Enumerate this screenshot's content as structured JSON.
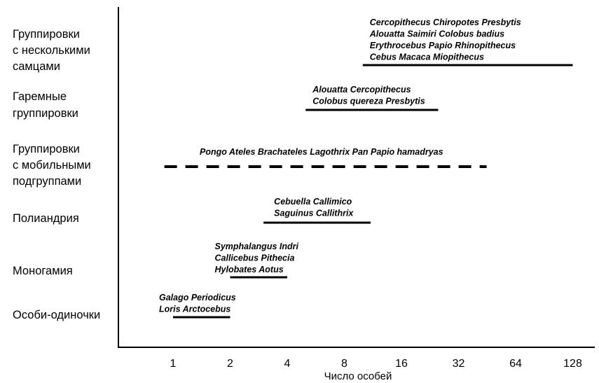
{
  "chart_data": {
    "type": "range",
    "xlabel": "Число особей",
    "x_scale": "log2",
    "x_ticks": [
      "1",
      "2",
      "4",
      "8",
      "16",
      "32",
      "64",
      "128"
    ],
    "xlim": [
      0.6,
      132
    ],
    "grid": false,
    "series": [
      {
        "category": [
          "Группировки",
          "с несколькими",
          "самцами"
        ],
        "species": [
          "Cercopithecus Chiropotes Presbytis",
          "Alouatta Saimiri Colobus badius",
          "Erythrocebus Papio Rhinopithecus",
          "Cebus Macaca Miopithecus"
        ],
        "range": [
          10,
          128
        ],
        "style": "solid"
      },
      {
        "category": [
          "Гаремные",
          "группировки"
        ],
        "species": [
          "Alouatta Cercopithecus",
          "Colobus quereza Presbytis"
        ],
        "range": [
          5,
          25
        ],
        "style": "solid"
      },
      {
        "category": [
          "Группировки",
          "с мобильными",
          "подгруппами"
        ],
        "species": [
          "Pongo Ateles Brachateles Lagothrix Pan Papio hamadryas"
        ],
        "range": [
          0.9,
          45
        ],
        "style": "dashed"
      },
      {
        "category": [
          "Полиандрия"
        ],
        "species": [
          "Cebuella Callimico",
          "Saguinus Callithrix"
        ],
        "range": [
          3,
          11
        ],
        "style": "solid"
      },
      {
        "category": [
          "Моногамия"
        ],
        "species": [
          "Symphalangus Indri",
          "Callicebus Pithecia",
          "Hylobates Aotus"
        ],
        "range": [
          2,
          4
        ],
        "style": "solid"
      },
      {
        "category": [
          "Особи-одиночки"
        ],
        "species": [
          "Galago Periodicus",
          "Loris Arctocebus"
        ],
        "range": [
          1,
          2
        ],
        "style": "solid"
      }
    ]
  }
}
